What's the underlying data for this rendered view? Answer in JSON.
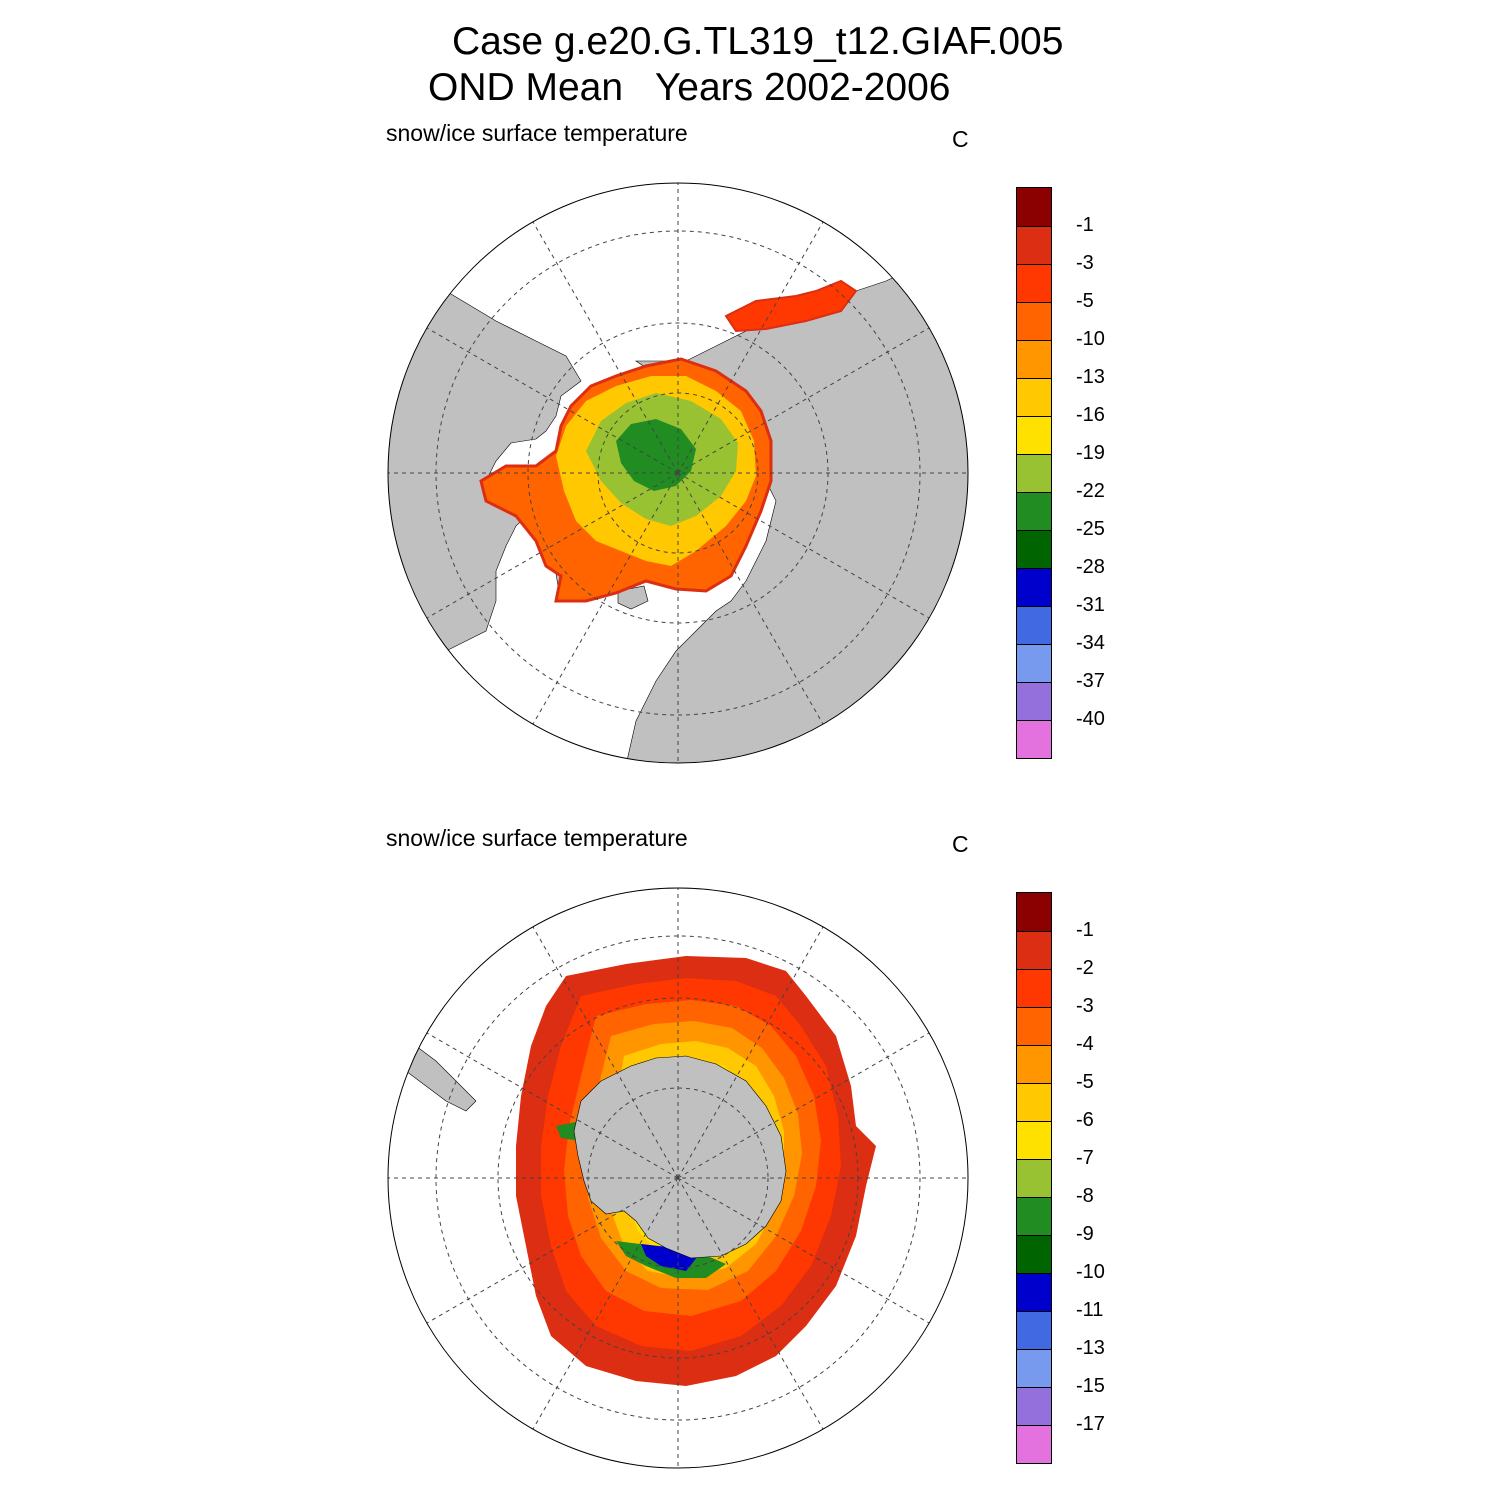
{
  "title": {
    "line1": "Case g.e20.G.TL319_t12.GIAF.005",
    "line2": "OND Mean   Years 2002-2006"
  },
  "panels": [
    {
      "hemisphere": "north",
      "variable_label": "snow/ice surface temperature",
      "units": "C",
      "colorbar": {
        "colors": [
          "#8b0000",
          "#dc2e12",
          "#ff3700",
          "#ff6400",
          "#ff9600",
          "#ffc800",
          "#ffe100",
          "#99c233",
          "#218c21",
          "#006400",
          "#0000cd",
          "#4169e1",
          "#7799ee",
          "#9370db",
          "#e371de"
        ],
        "labels": [
          "-1",
          "-3",
          "-5",
          "-10",
          "-13",
          "-16",
          "-19",
          "-22",
          "-25",
          "-28",
          "-31",
          "-34",
          "-37",
          "-40"
        ]
      }
    },
    {
      "hemisphere": "south",
      "variable_label": "snow/ice surface temperature",
      "units": "C",
      "colorbar": {
        "colors": [
          "#8b0000",
          "#dc2e12",
          "#ff3700",
          "#ff6400",
          "#ff9600",
          "#ffc800",
          "#ffe100",
          "#99c233",
          "#218c21",
          "#006400",
          "#0000cd",
          "#4169e1",
          "#7799ee",
          "#9370db",
          "#e371de"
        ],
        "labels": [
          "-1",
          "-2",
          "-3",
          "-4",
          "-5",
          "-6",
          "-7",
          "-8",
          "-9",
          "-10",
          "-11",
          "-13",
          "-15",
          "-17"
        ]
      }
    }
  ]
}
